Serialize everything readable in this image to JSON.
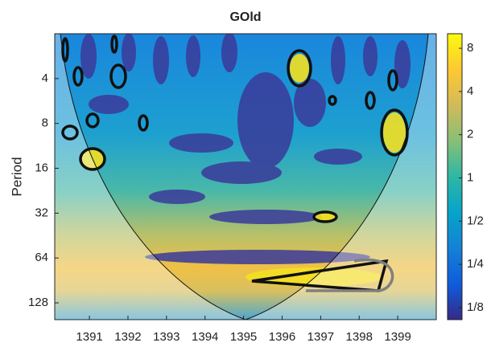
{
  "chart_data": {
    "type": "heatmap",
    "title": "GOld",
    "y_label": "Period",
    "xlim": [
      1390.1,
      1400
    ],
    "xticks": [
      1391,
      1392,
      1393,
      1394,
      1395,
      1396,
      1397,
      1398,
      1399
    ],
    "ylim": [
      2,
      166
    ],
    "y_scale": "log2",
    "y_reversed": true,
    "yticks": [
      4,
      8,
      16,
      32,
      64,
      128
    ],
    "colorbar": {
      "lim": [
        0.103,
        10.1
      ],
      "scale": "log2",
      "ticks": [
        {
          "value": 0.125,
          "label": "1/8"
        },
        {
          "value": 0.25,
          "label": "1/4"
        },
        {
          "value": 0.5,
          "label": "1/2"
        },
        1,
        2,
        4,
        8
      ]
    },
    "colormap": [
      "#352a87",
      "#0f5cdd",
      "#1481d6",
      "#06a4ca",
      "#2eb7a4",
      "#87bf77",
      "#d1bb59",
      "#fec832",
      "#f9fb0e"
    ]
  }
}
